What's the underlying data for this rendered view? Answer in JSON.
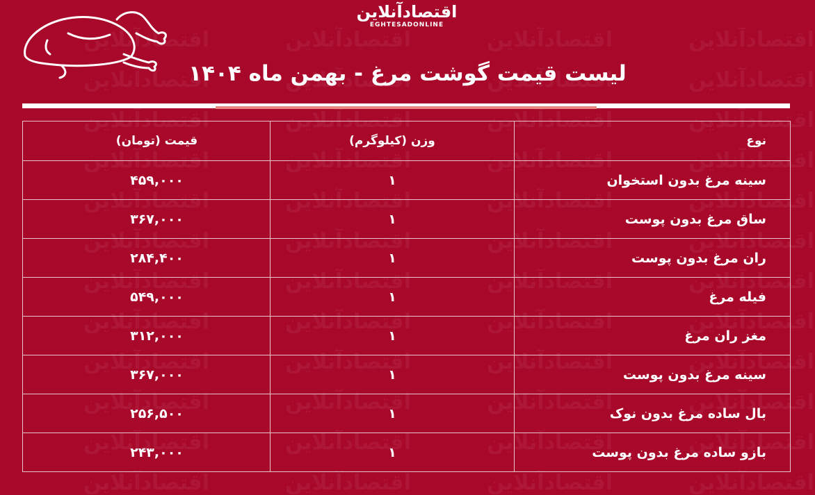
{
  "brand": {
    "name_fa": "اقتصادآنلاین",
    "name_en": "EGHTESADONLINE"
  },
  "title": "لیست قیمت گوشت مرغ - بهمن ماه ۱۴۰۴",
  "colors": {
    "background": "#a8082a",
    "accent_line": "#e8877f",
    "text": "#ffffff"
  },
  "icons": {
    "chicken": "roast-chicken-outline-icon"
  },
  "table": {
    "headers": {
      "type": "نوع",
      "weight": "وزن (کیلوگرم)",
      "price": "قیمت (تومان)"
    },
    "rows": [
      {
        "type": "سینه مرغ بدون استخوان",
        "weight": "۱",
        "price": "۴۵۹,۰۰۰"
      },
      {
        "type": "ساق مرغ بدون پوست",
        "weight": "۱",
        "price": "۳۶۷,۰۰۰"
      },
      {
        "type": "ران مرغ بدون پوست",
        "weight": "۱",
        "price": "۲۸۴,۴۰۰"
      },
      {
        "type": "فیله مرغ",
        "weight": "۱",
        "price": "۵۴۹,۰۰۰"
      },
      {
        "type": "مغز ران مرغ",
        "weight": "۱",
        "price": "۳۱۲,۰۰۰"
      },
      {
        "type": "سینه مرغ بدون پوست",
        "weight": "۱",
        "price": "۳۶۷,۰۰۰"
      },
      {
        "type": "بال ساده مرغ بدون نوک",
        "weight": "۱",
        "price": "۲۵۶,۵۰۰"
      },
      {
        "type": "بازو ساده مرغ بدون پوست",
        "weight": "۱",
        "price": "۲۴۳,۰۰۰"
      }
    ]
  }
}
